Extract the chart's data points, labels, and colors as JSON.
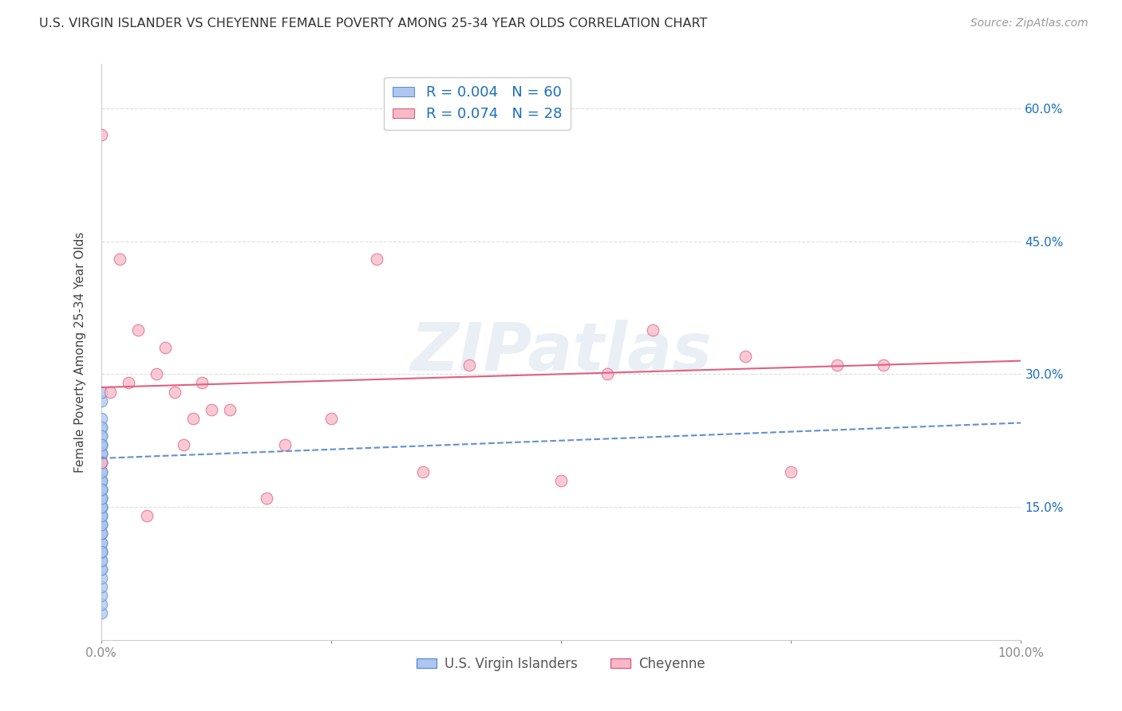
{
  "title": "U.S. VIRGIN ISLANDER VS CHEYENNE FEMALE POVERTY AMONG 25-34 YEAR OLDS CORRELATION CHART",
  "source": "Source: ZipAtlas.com",
  "ylabel": "Female Poverty Among 25-34 Year Olds",
  "xlim": [
    0,
    1.0
  ],
  "ylim": [
    0,
    0.65
  ],
  "series1_label": "U.S. Virgin Islanders",
  "series1_color": "#aec6f0",
  "series1_edge_color": "#6090d0",
  "series1_line_color": "#6090d0",
  "series1_R": "0.004",
  "series1_N": "60",
  "series2_label": "Cheyenne",
  "series2_color": "#f8b8c8",
  "series2_edge_color": "#e06080",
  "series2_line_color": "#e06080",
  "series2_R": "0.074",
  "series2_N": "28",
  "watermark": "ZIPatlas",
  "background_color": "#ffffff",
  "grid_color": "#dddddd",
  "legend_number_color": "#1a6fbd",
  "right_axis_color": "#1a6fbd",
  "series1_x": [
    0.0,
    0.0,
    0.0,
    0.0,
    0.0,
    0.0,
    0.0,
    0.0,
    0.0,
    0.0,
    0.0,
    0.0,
    0.0,
    0.0,
    0.0,
    0.0,
    0.0,
    0.0,
    0.0,
    0.0,
    0.0,
    0.0,
    0.0,
    0.0,
    0.0,
    0.0,
    0.0,
    0.0,
    0.0,
    0.0,
    0.0,
    0.0,
    0.0,
    0.0,
    0.0,
    0.0,
    0.0,
    0.0,
    0.0,
    0.0,
    0.0,
    0.0,
    0.0,
    0.0,
    0.0,
    0.0,
    0.0,
    0.0,
    0.0,
    0.0,
    0.0,
    0.0,
    0.0,
    0.0,
    0.0,
    0.0,
    0.0,
    0.0,
    0.0,
    0.0
  ],
  "series1_y": [
    0.03,
    0.04,
    0.05,
    0.06,
    0.07,
    0.08,
    0.08,
    0.09,
    0.09,
    0.1,
    0.1,
    0.1,
    0.11,
    0.11,
    0.12,
    0.12,
    0.13,
    0.13,
    0.14,
    0.14,
    0.15,
    0.15,
    0.16,
    0.16,
    0.17,
    0.17,
    0.18,
    0.19,
    0.2,
    0.21,
    0.22,
    0.23,
    0.24,
    0.25,
    0.27,
    0.28,
    0.1,
    0.12,
    0.15,
    0.18,
    0.2,
    0.22,
    0.24,
    0.13,
    0.16,
    0.19,
    0.21,
    0.14,
    0.17,
    0.2,
    0.22,
    0.15,
    0.18,
    0.21,
    0.16,
    0.19,
    0.23,
    0.17,
    0.2,
    0.22
  ],
  "series2_x": [
    0.0,
    0.0,
    0.01,
    0.02,
    0.03,
    0.04,
    0.05,
    0.06,
    0.07,
    0.08,
    0.09,
    0.1,
    0.11,
    0.12,
    0.14,
    0.18,
    0.2,
    0.25,
    0.3,
    0.35,
    0.4,
    0.5,
    0.55,
    0.6,
    0.7,
    0.75,
    0.8,
    0.85
  ],
  "series2_y": [
    0.57,
    0.2,
    0.28,
    0.43,
    0.29,
    0.35,
    0.14,
    0.3,
    0.33,
    0.28,
    0.22,
    0.25,
    0.29,
    0.26,
    0.26,
    0.16,
    0.22,
    0.25,
    0.43,
    0.19,
    0.31,
    0.18,
    0.3,
    0.35,
    0.32,
    0.19,
    0.31,
    0.31
  ],
  "trend1_x0": 0.0,
  "trend1_x1": 1.0,
  "trend1_y0": 0.205,
  "trend1_y1": 0.245,
  "trend2_x0": 0.0,
  "trend2_x1": 1.0,
  "trend2_y0": 0.285,
  "trend2_y1": 0.315
}
